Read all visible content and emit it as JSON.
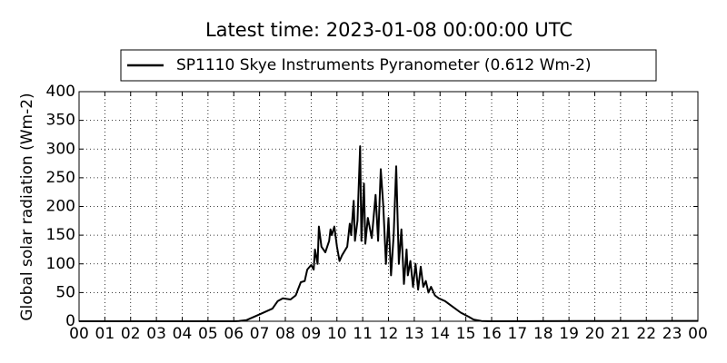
{
  "chart_data": {
    "type": "line",
    "title": "Latest time: 2023-01-08 00:00:00 UTC",
    "y_label": "Global solar radiation (Wm-2)",
    "x": [
      0,
      3,
      6,
      6.2,
      6.5,
      7,
      7.5,
      7.7,
      7.9,
      8.2,
      8.4,
      8.6,
      8.75,
      8.85,
      9.0,
      9.1,
      9.15,
      9.25,
      9.3,
      9.4,
      9.55,
      9.7,
      9.75,
      9.8,
      9.9,
      10.0,
      10.1,
      10.2,
      10.4,
      10.5,
      10.55,
      10.65,
      10.7,
      10.8,
      10.9,
      10.95,
      11.05,
      11.1,
      11.2,
      11.35,
      11.5,
      11.6,
      11.7,
      11.8,
      11.9,
      12.0,
      12.1,
      12.2,
      12.3,
      12.4,
      12.5,
      12.6,
      12.7,
      12.75,
      12.85,
      12.95,
      13.05,
      13.15,
      13.25,
      13.35,
      13.45,
      13.55,
      13.65,
      13.8,
      13.95,
      14.2,
      14.5,
      14.8,
      15.1,
      15.3,
      15.6,
      16,
      20,
      24
    ],
    "series": [
      {
        "name": "SP1110 Skye Instruments Pyranometer (0.612 Wm-2)",
        "color": "#000000",
        "values": [
          0,
          0,
          0,
          0.5,
          2,
          12,
          22,
          35,
          40,
          38,
          45,
          68,
          70,
          90,
          98,
          90,
          125,
          100,
          165,
          130,
          120,
          140,
          160,
          150,
          165,
          130,
          105,
          115,
          130,
          170,
          150,
          210,
          140,
          175,
          305,
          140,
          240,
          135,
          180,
          145,
          220,
          140,
          265,
          200,
          100,
          180,
          80,
          150,
          270,
          100,
          160,
          65,
          125,
          80,
          105,
          60,
          100,
          55,
          95,
          60,
          70,
          50,
          60,
          45,
          40,
          35,
          25,
          15,
          8,
          3,
          0.5,
          0,
          0.5,
          0.6
        ]
      }
    ],
    "xlim": [
      0,
      24
    ],
    "ylim": [
      0,
      400
    ],
    "xticks": [
      {
        "value": 0,
        "label": "00"
      },
      {
        "value": 1,
        "label": "01"
      },
      {
        "value": 2,
        "label": "02"
      },
      {
        "value": 3,
        "label": "03"
      },
      {
        "value": 4,
        "label": "04"
      },
      {
        "value": 5,
        "label": "05"
      },
      {
        "value": 6,
        "label": "06"
      },
      {
        "value": 7,
        "label": "07"
      },
      {
        "value": 8,
        "label": "08"
      },
      {
        "value": 9,
        "label": "09"
      },
      10,
      11,
      12,
      13,
      14,
      15,
      16,
      17,
      18,
      19,
      20,
      21,
      22,
      23,
      {
        "value": 24,
        "label": "00"
      }
    ],
    "yticks": [
      0,
      50,
      100,
      150,
      200,
      250,
      300,
      350,
      400
    ],
    "grid": true,
    "legend": "top"
  }
}
